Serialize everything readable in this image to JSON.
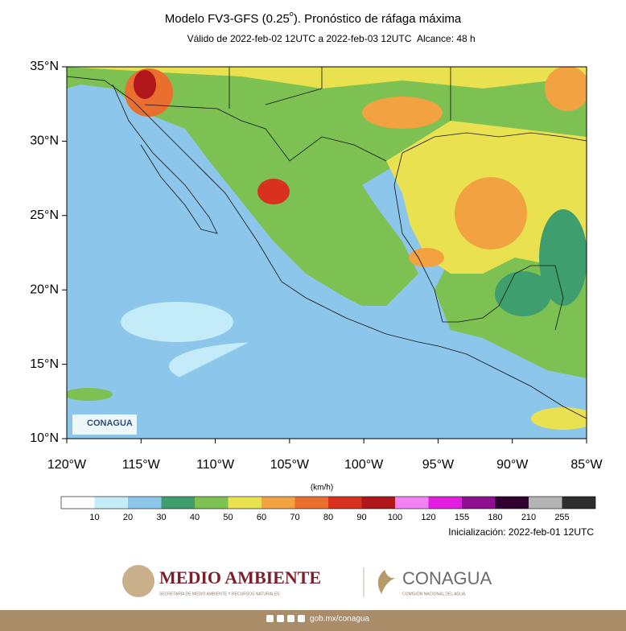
{
  "header": {
    "title_start": "Modelo FV3-GFS (0.25",
    "title_sup": "o",
    "title_end": "). Pronóstico de ráfaga máxima",
    "valid": "Válido de 2022-feb-02 12UTC a 2022-feb-03 12UTC",
    "range": "Alcance: 48 h"
  },
  "map": {
    "lat_labels": [
      "35°N",
      "30°N",
      "25°N",
      "20°N",
      "15°N",
      "10°N"
    ],
    "lon_labels": [
      "120°W",
      "115°W",
      "110°W",
      "105°W",
      "100°W",
      "95°W",
      "90°W",
      "85°W"
    ],
    "inset_logo": "CONAGUA"
  },
  "legend": {
    "unit": "(km/h)",
    "colors": [
      "#ffffff",
      "#c4ecf8",
      "#8cc6ea",
      "#3f9e6e",
      "#7cc152",
      "#e9e150",
      "#f2a240",
      "#ea6f2e",
      "#d8321f",
      "#b0161a",
      "#f382f2",
      "#e21fe0",
      "#8e108e",
      "#300030",
      "#b4b4b4",
      "#2e2e2e"
    ],
    "labels": [
      10,
      20,
      30,
      40,
      50,
      60,
      70,
      80,
      90,
      100,
      120,
      155,
      180,
      210,
      255
    ]
  },
  "init": "Inicialización: 2022-feb-01 12UTC",
  "footer": {
    "semarnat": "MEDIO AMBIENTE",
    "semarnat_sub": "SECRETARÍA DE MEDIO AMBIENTE Y RECURSOS NATURALES",
    "conagua": "CONAGUA",
    "conagua_sub": "COMISIÓN NACIONAL DEL AGUA",
    "url": "gob.mx/conagua"
  }
}
